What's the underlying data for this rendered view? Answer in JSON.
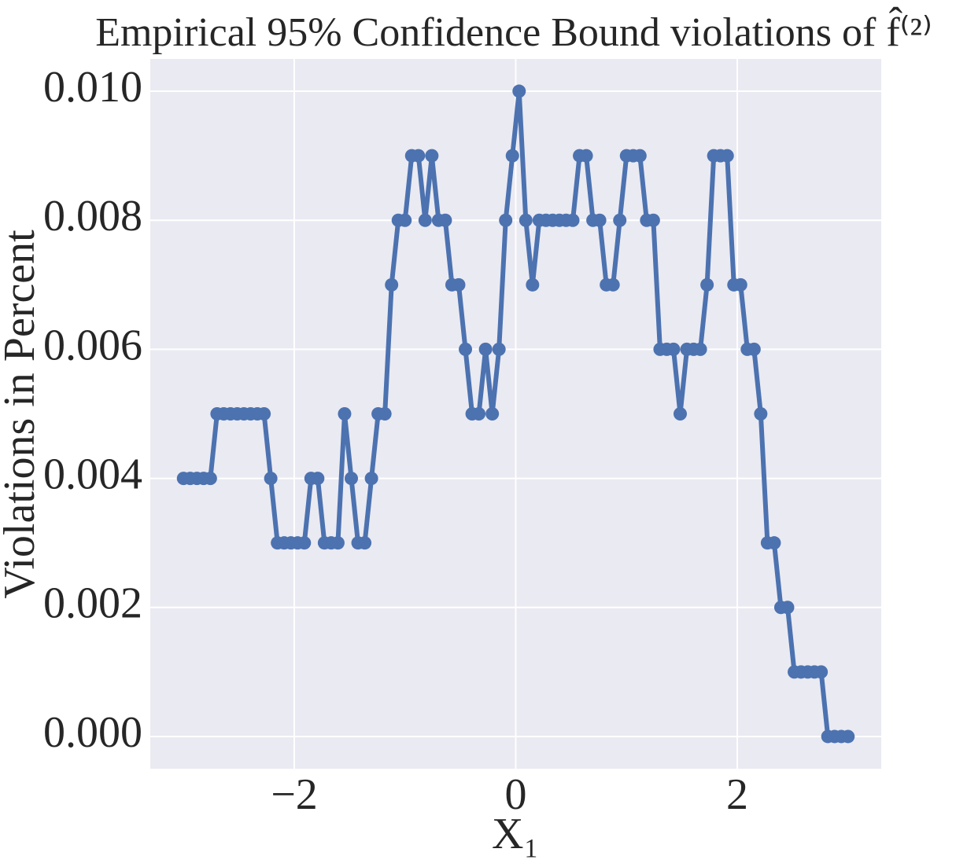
{
  "chart_data": {
    "type": "line",
    "title": "Empirical 95% Confidence Bound violations of f̂⁽²⁾",
    "xlabel": "X₁",
    "ylabel": "Violations in Percent",
    "x": [
      -3,
      -2.9394,
      -2.8788,
      -2.8182,
      -2.7576,
      -2.697,
      -2.6364,
      -2.5758,
      -2.5152,
      -2.4545,
      -2.3939,
      -2.3333,
      -2.2727,
      -2.2121,
      -2.1515,
      -2.0909,
      -2.0303,
      -1.9697,
      -1.9091,
      -1.8485,
      -1.7879,
      -1.7273,
      -1.6667,
      -1.6061,
      -1.5455,
      -1.4848,
      -1.4242,
      -1.3636,
      -1.303,
      -1.2424,
      -1.1818,
      -1.1212,
      -1.0606,
      -1,
      -0.9394,
      -0.8788,
      -0.8182,
      -0.7576,
      -0.697,
      -0.6364,
      -0.5758,
      -0.5152,
      -0.4545,
      -0.3939,
      -0.3333,
      -0.2727,
      -0.2121,
      -0.1515,
      -0.0909,
      -0.0303,
      0.0303,
      0.0909,
      0.1515,
      0.2121,
      0.2727,
      0.3333,
      0.3939,
      0.4545,
      0.5152,
      0.5758,
      0.6364,
      0.697,
      0.7576,
      0.8182,
      0.8788,
      0.9394,
      1,
      1.0606,
      1.1212,
      1.1818,
      1.2424,
      1.303,
      1.3636,
      1.4242,
      1.4848,
      1.5455,
      1.6061,
      1.6667,
      1.7273,
      1.7879,
      1.8485,
      1.9091,
      1.9697,
      2.0303,
      2.0909,
      2.1515,
      2.2121,
      2.2727,
      2.3333,
      2.3939,
      2.4545,
      2.5152,
      2.5758,
      2.6364,
      2.697,
      2.7576,
      2.8182,
      2.8788,
      2.9394,
      3
    ],
    "series": [
      {
        "color": "#4c72b0",
        "values": [
          0.004,
          0.004,
          0.004,
          0.004,
          0.004,
          0.005,
          0.005,
          0.005,
          0.005,
          0.005,
          0.005,
          0.005,
          0.005,
          0.004,
          0.003,
          0.003,
          0.003,
          0.003,
          0.003,
          0.004,
          0.004,
          0.003,
          0.003,
          0.003,
          0.005,
          0.004,
          0.003,
          0.003,
          0.004,
          0.005,
          0.005,
          0.007,
          0.008,
          0.008,
          0.009,
          0.009,
          0.008,
          0.009,
          0.008,
          0.008,
          0.007,
          0.007,
          0.006,
          0.005,
          0.005,
          0.006,
          0.005,
          0.006,
          0.008,
          0.009,
          0.01,
          0.008,
          0.007,
          0.008,
          0.008,
          0.008,
          0.008,
          0.008,
          0.008,
          0.009,
          0.009,
          0.008,
          0.008,
          0.007,
          0.007,
          0.008,
          0.009,
          0.009,
          0.009,
          0.008,
          0.008,
          0.006,
          0.006,
          0.006,
          0.005,
          0.006,
          0.006,
          0.006,
          0.007,
          0.009,
          0.009,
          0.009,
          0.007,
          0.007,
          0.006,
          0.006,
          0.005,
          0.003,
          0.003,
          0.002,
          0.002,
          0.001,
          0.001,
          0.001,
          0.001,
          0.001,
          0,
          0,
          0,
          0
        ]
      }
    ],
    "xlim": [
      -3.3,
      3.3
    ],
    "ylim": [
      -0.0005,
      0.0105
    ],
    "xticks": [
      {
        "value": -2,
        "label": "−2"
      },
      0,
      2
    ],
    "yticks": [
      {
        "value": 0,
        "label": "0.000"
      },
      {
        "value": 0.002,
        "label": "0.002"
      },
      {
        "value": 0.004,
        "label": "0.004"
      },
      {
        "value": 0.006,
        "label": "0.006"
      },
      {
        "value": 0.008,
        "label": "0.008"
      },
      {
        "value": 0.01,
        "label": "0.010"
      }
    ],
    "grid": true,
    "background": "#eaeaf2"
  }
}
